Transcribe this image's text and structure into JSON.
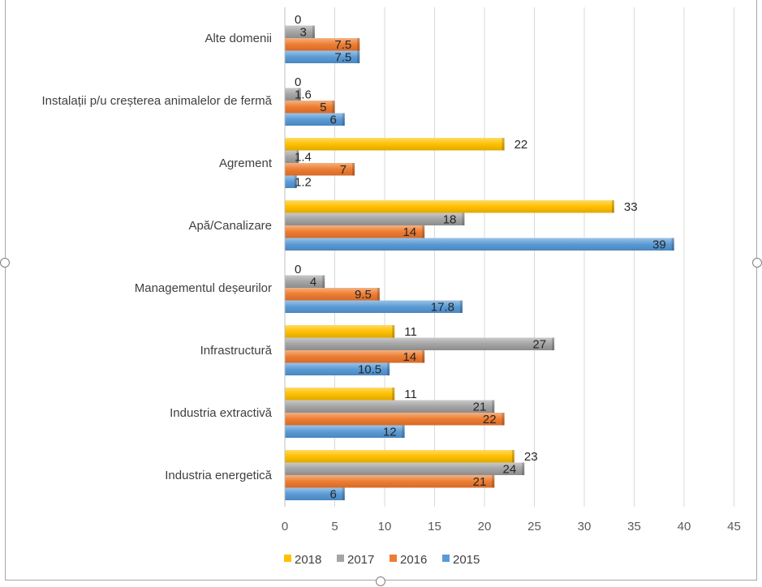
{
  "chart_data": {
    "type": "bar",
    "orientation": "horizontal",
    "title": "",
    "xlabel": "",
    "ylabel": "",
    "xlim": [
      0,
      45
    ],
    "x_ticks": [
      "0",
      "5",
      "10",
      "15",
      "20",
      "25",
      "30",
      "35",
      "40",
      "45"
    ],
    "grid": true,
    "legend_position": "bottom",
    "categories": [
      "Alte domenii",
      "Instalații p/u creșterea animalelor de fermă",
      "Agrement",
      "Apă/Canalizare",
      "Managementul deșeurilor",
      "Infrastructură",
      "Industria extractivă",
      "Industria energetică"
    ],
    "series": [
      {
        "name": "2018",
        "color": "#ffc000",
        "values": [
          0,
          0,
          22,
          33,
          0,
          11,
          11,
          23
        ],
        "labels": [
          "0",
          "0",
          "22",
          "33",
          "0",
          "11",
          "11",
          "23"
        ]
      },
      {
        "name": "2017",
        "color": "#a5a5a5",
        "values": [
          3,
          1.6,
          1.4,
          18,
          4,
          27,
          21,
          24
        ],
        "labels": [
          "3",
          "1.6",
          "1.4",
          "18",
          "4",
          "27",
          "21",
          "24"
        ]
      },
      {
        "name": "2016",
        "color": "#ed7d31",
        "values": [
          7.5,
          5,
          7,
          14,
          9.5,
          14,
          22,
          21
        ],
        "labels": [
          "7.5",
          "5",
          "7",
          "14",
          "9.5",
          "14",
          "22",
          "21"
        ]
      },
      {
        "name": "2015",
        "color": "#5b9bd5",
        "values": [
          7.5,
          6,
          1.2,
          39,
          17.8,
          10.5,
          12,
          6
        ],
        "labels": [
          "7.5",
          "6",
          "1.2",
          "39",
          "17.8",
          "10.5",
          "12",
          "6"
        ]
      }
    ]
  }
}
